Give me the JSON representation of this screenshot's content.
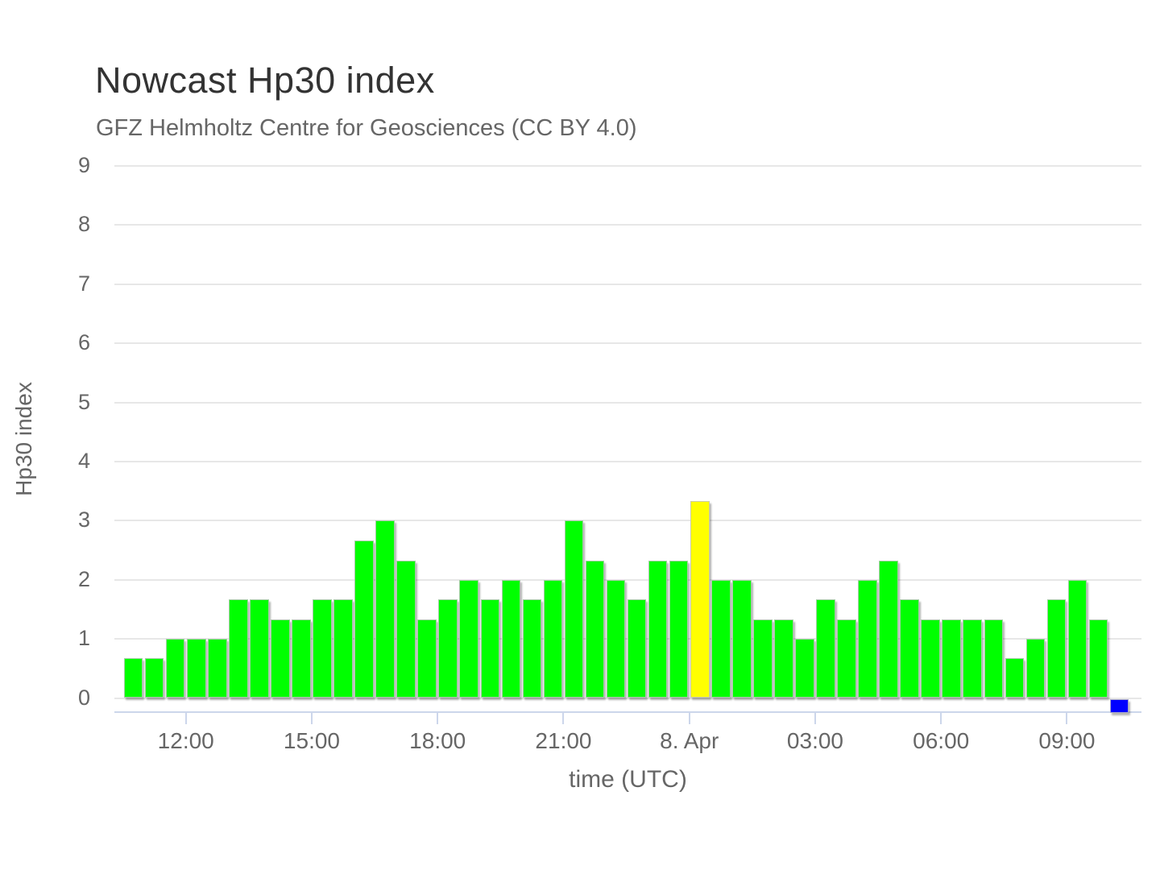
{
  "chart_data": {
    "type": "bar",
    "title": "Nowcast Hp30 index",
    "subtitle": "GFZ Helmholtz Centre for Geosciences (CC BY 4.0)",
    "xlabel": "time (UTC)",
    "ylabel": "Hp30 index",
    "ylim": [
      0,
      9
    ],
    "yticks": [
      0,
      1,
      2,
      3,
      4,
      5,
      6,
      7,
      8,
      9
    ],
    "grid": true,
    "legend": "none",
    "bar_interval_minutes": 30,
    "day_boundary_label": "8. Apr",
    "day_boundary_index": 27,
    "colors": {
      "quiet_bar": "#00ff00",
      "active_bar": "#ffff00",
      "latest_bar": "#0000ff",
      "gridline": "#e7e7e7",
      "axis_line": "#ccd6eb",
      "label_text": "#666666",
      "title_text": "#333333"
    },
    "xticks": [
      {
        "label": "12:00",
        "hours_from_start": 1.5
      },
      {
        "label": "15:00",
        "hours_from_start": 4.5
      },
      {
        "label": "18:00",
        "hours_from_start": 7.5
      },
      {
        "label": "21:00",
        "hours_from_start": 10.5
      },
      {
        "label": "8. Apr",
        "hours_from_start": 13.5
      },
      {
        "label": "03:00",
        "hours_from_start": 16.5
      },
      {
        "label": "06:00",
        "hours_from_start": 19.5
      },
      {
        "label": "09:00",
        "hours_from_start": 22.5
      }
    ],
    "bars": [
      {
        "time": "10:30",
        "value": 0.67,
        "color_key": "quiet_bar"
      },
      {
        "time": "11:00",
        "value": 0.67,
        "color_key": "quiet_bar"
      },
      {
        "time": "11:30",
        "value": 1.0,
        "color_key": "quiet_bar"
      },
      {
        "time": "12:00",
        "value": 1.0,
        "color_key": "quiet_bar"
      },
      {
        "time": "12:30",
        "value": 1.0,
        "color_key": "quiet_bar"
      },
      {
        "time": "13:00",
        "value": 1.67,
        "color_key": "quiet_bar"
      },
      {
        "time": "13:30",
        "value": 1.67,
        "color_key": "quiet_bar"
      },
      {
        "time": "14:00",
        "value": 1.33,
        "color_key": "quiet_bar"
      },
      {
        "time": "14:30",
        "value": 1.33,
        "color_key": "quiet_bar"
      },
      {
        "time": "15:00",
        "value": 1.67,
        "color_key": "quiet_bar"
      },
      {
        "time": "15:30",
        "value": 1.67,
        "color_key": "quiet_bar"
      },
      {
        "time": "16:00",
        "value": 2.67,
        "color_key": "quiet_bar"
      },
      {
        "time": "16:30",
        "value": 3.0,
        "color_key": "quiet_bar"
      },
      {
        "time": "17:00",
        "value": 2.33,
        "color_key": "quiet_bar"
      },
      {
        "time": "17:30",
        "value": 1.33,
        "color_key": "quiet_bar"
      },
      {
        "time": "18:00",
        "value": 1.67,
        "color_key": "quiet_bar"
      },
      {
        "time": "18:30",
        "value": 2.0,
        "color_key": "quiet_bar"
      },
      {
        "time": "19:00",
        "value": 1.67,
        "color_key": "quiet_bar"
      },
      {
        "time": "19:30",
        "value": 2.0,
        "color_key": "quiet_bar"
      },
      {
        "time": "20:00",
        "value": 1.67,
        "color_key": "quiet_bar"
      },
      {
        "time": "20:30",
        "value": 2.0,
        "color_key": "quiet_bar"
      },
      {
        "time": "21:00",
        "value": 3.0,
        "color_key": "quiet_bar"
      },
      {
        "time": "21:30",
        "value": 2.33,
        "color_key": "quiet_bar"
      },
      {
        "time": "22:00",
        "value": 2.0,
        "color_key": "quiet_bar"
      },
      {
        "time": "22:30",
        "value": 1.67,
        "color_key": "quiet_bar"
      },
      {
        "time": "23:00",
        "value": 2.33,
        "color_key": "quiet_bar"
      },
      {
        "time": "23:30",
        "value": 2.33,
        "color_key": "quiet_bar"
      },
      {
        "time": "00:00",
        "value": 3.33,
        "color_key": "active_bar"
      },
      {
        "time": "00:30",
        "value": 2.0,
        "color_key": "quiet_bar"
      },
      {
        "time": "01:00",
        "value": 2.0,
        "color_key": "quiet_bar"
      },
      {
        "time": "01:30",
        "value": 1.33,
        "color_key": "quiet_bar"
      },
      {
        "time": "02:00",
        "value": 1.33,
        "color_key": "quiet_bar"
      },
      {
        "time": "02:30",
        "value": 1.0,
        "color_key": "quiet_bar"
      },
      {
        "time": "03:00",
        "value": 1.67,
        "color_key": "quiet_bar"
      },
      {
        "time": "03:30",
        "value": 1.33,
        "color_key": "quiet_bar"
      },
      {
        "time": "04:00",
        "value": 2.0,
        "color_key": "quiet_bar"
      },
      {
        "time": "04:30",
        "value": 2.33,
        "color_key": "quiet_bar"
      },
      {
        "time": "05:00",
        "value": 1.67,
        "color_key": "quiet_bar"
      },
      {
        "time": "05:30",
        "value": 1.33,
        "color_key": "quiet_bar"
      },
      {
        "time": "06:00",
        "value": 1.33,
        "color_key": "quiet_bar"
      },
      {
        "time": "06:30",
        "value": 1.33,
        "color_key": "quiet_bar"
      },
      {
        "time": "07:00",
        "value": 1.33,
        "color_key": "quiet_bar"
      },
      {
        "time": "07:30",
        "value": 0.67,
        "color_key": "quiet_bar"
      },
      {
        "time": "08:00",
        "value": 1.0,
        "color_key": "quiet_bar"
      },
      {
        "time": "08:30",
        "value": 1.67,
        "color_key": "quiet_bar"
      },
      {
        "time": "09:00",
        "value": 2.0,
        "color_key": "quiet_bar"
      },
      {
        "time": "09:30",
        "value": 1.33,
        "color_key": "quiet_bar"
      },
      {
        "time": "10:00",
        "value": 0.0,
        "color_key": "latest_bar",
        "latest_placeholder": true
      }
    ]
  }
}
